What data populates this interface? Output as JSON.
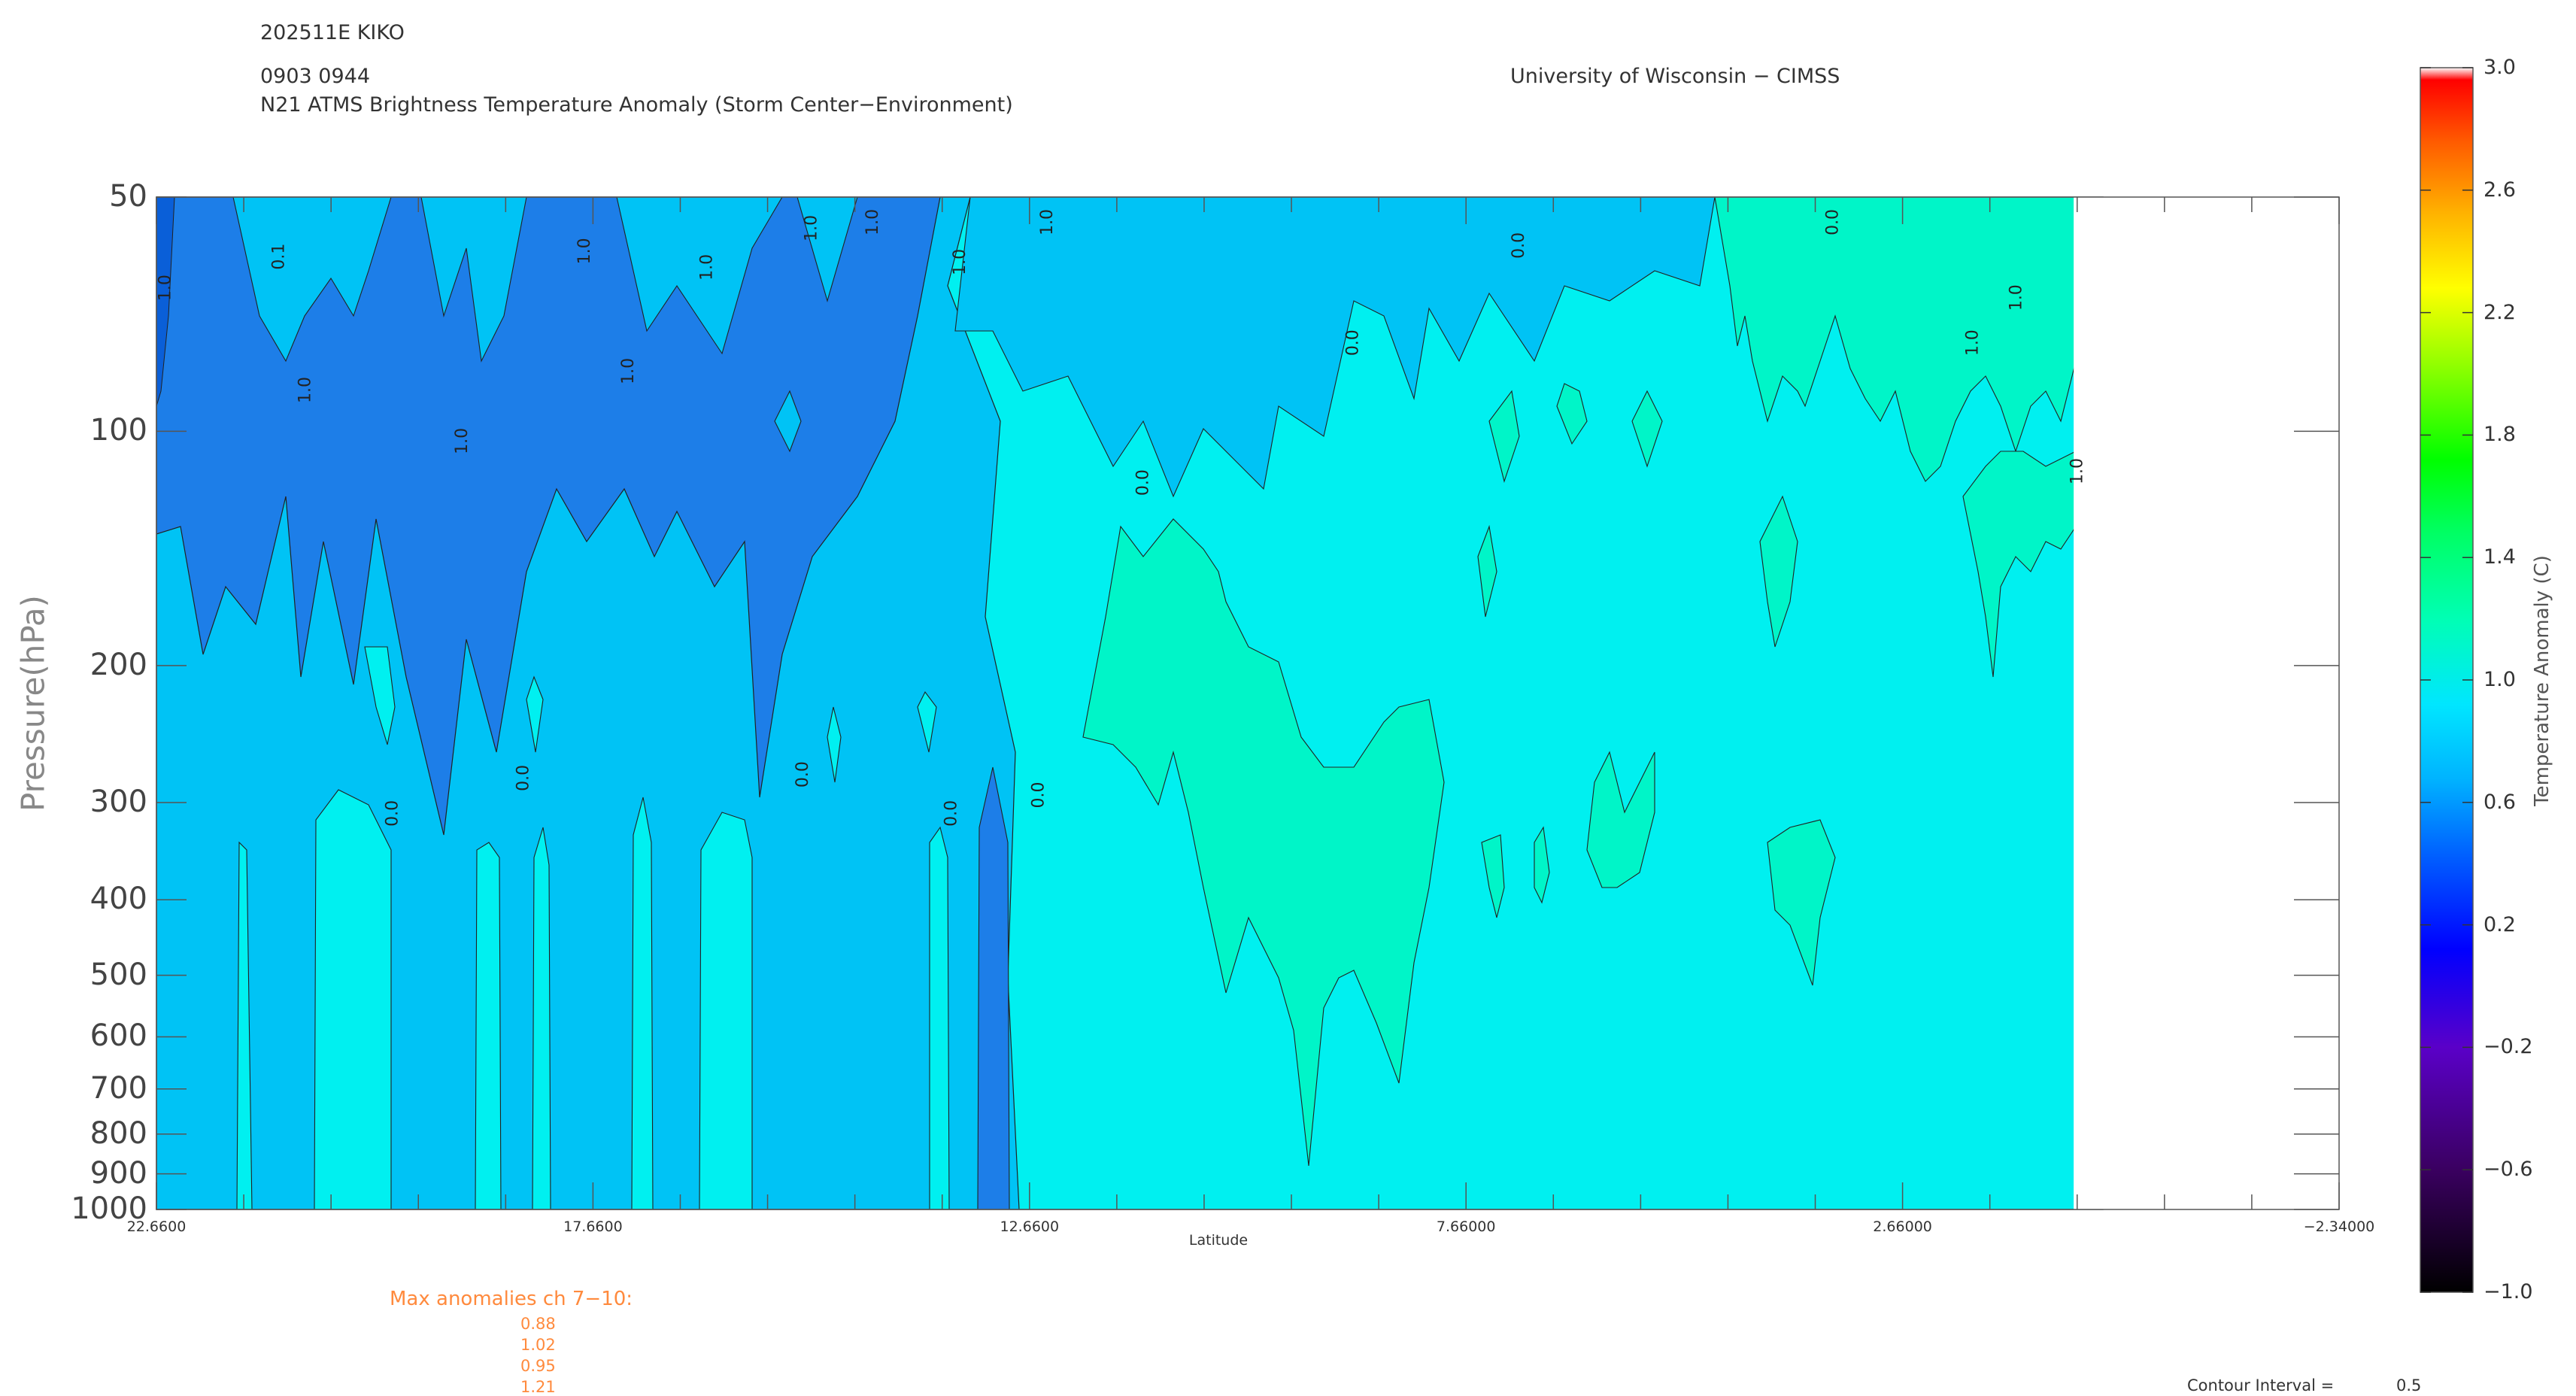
{
  "header": {
    "storm_id": "202511E KIKO",
    "times": "0903 0944",
    "title": "N21 ATMS Brightness Temperature Anomaly (Storm Center−Environment)",
    "institution": "University of Wisconsin − CIMSS"
  },
  "footer": {
    "max_anomalies_label": "Max anomalies ch 7−10:",
    "max_anomalies": [
      "0.88",
      "1.02",
      "0.95",
      "1.21"
    ],
    "contour_interval_label": "Contour Interval =",
    "contour_interval_value": "0.5"
  },
  "colors": {
    "plot_background": "#ffffff",
    "axis": "#555555",
    "title_text": "#333333",
    "max_anomaly_text": "#ff8a3d"
  },
  "chart_data": {
    "type": "heatmap",
    "subtype": "filled-contour cross-section",
    "xlabel": "Latitude",
    "ylabel": "Pressure(hPa)",
    "colorbar_label": "Temperature Anomaly (C)",
    "x_range": [
      22.66,
      -2.34
    ],
    "y_range_hPa": [
      1000,
      50
    ],
    "y_scale": "log",
    "x_ticks": [
      "22.6600",
      "17.6600",
      "12.6600",
      "7.66000",
      "2.66000",
      "−2.34000"
    ],
    "x_tick_values": [
      22.66,
      17.66,
      12.66,
      7.66,
      2.66,
      -2.34
    ],
    "y_ticks": [
      "50",
      "100",
      "200",
      "300",
      "400",
      "500",
      "600",
      "700",
      "800",
      "900",
      "1000"
    ],
    "y_tick_values": [
      50,
      100,
      200,
      300,
      400,
      500,
      600,
      700,
      800,
      900,
      1000
    ],
    "colorbar_ticks": [
      "3.0",
      "2.6",
      "2.2",
      "1.8",
      "1.4",
      "1.0",
      "0.6",
      "0.2",
      "−0.2",
      "−0.6",
      "−1.0"
    ],
    "colorbar_values": [
      3.0,
      2.6,
      2.2,
      1.8,
      1.4,
      1.0,
      0.6,
      0.2,
      -0.2,
      -0.6,
      -1.0
    ],
    "colorbar_range": [
      -1.0,
      3.0
    ],
    "data_extent_lat": [
      22.66,
      0.7
    ],
    "contour_labels": [
      {
        "text": "1.0",
        "lat": 22.5,
        "p": 68,
        "color": "#1d7ee8"
      },
      {
        "text": "0.1",
        "lat": 21.2,
        "p": 62,
        "color": "#00c3f5"
      },
      {
        "text": "1.0",
        "lat": 20.9,
        "p": 92,
        "color": "#1d7ee8"
      },
      {
        "text": "1.0",
        "lat": 19.1,
        "p": 107,
        "color": "#1d7ee8"
      },
      {
        "text": "1.0",
        "lat": 17.7,
        "p": 61,
        "color": "#1d7ee8"
      },
      {
        "text": "1.0",
        "lat": 17.2,
        "p": 87,
        "color": "#1d7ee8"
      },
      {
        "text": "1.0",
        "lat": 16.3,
        "p": 64,
        "color": "#1d7ee8"
      },
      {
        "text": "1.0",
        "lat": 15.1,
        "p": 57,
        "color": "#1d7ee8"
      },
      {
        "text": "1.0",
        "lat": 14.4,
        "p": 56,
        "color": "#1d7ee8"
      },
      {
        "text": "1.0",
        "lat": 13.4,
        "p": 63,
        "color": "#1d7ee8"
      },
      {
        "text": "1.0",
        "lat": 12.4,
        "p": 56,
        "color": "#1d7ee8"
      },
      {
        "text": "0.0",
        "lat": 11.3,
        "p": 121,
        "color": "#00c3f5"
      },
      {
        "text": "0.0",
        "lat": 8.9,
        "p": 80,
        "color": "#00c3f5"
      },
      {
        "text": "0.0",
        "lat": 7.0,
        "p": 60,
        "color": "#00c3f5"
      },
      {
        "text": "0.0",
        "lat": 3.4,
        "p": 56,
        "color": "#00c3f5"
      },
      {
        "text": "1.0",
        "lat": 1.8,
        "p": 80,
        "color": "#00f0f0"
      },
      {
        "text": "1.0",
        "lat": 1.3,
        "p": 70,
        "color": "#00f0f0"
      },
      {
        "text": "1.0",
        "lat": 0.6,
        "p": 117,
        "color": "#00f0f0"
      },
      {
        "text": "0.0",
        "lat": 18.4,
        "p": 290,
        "color": "#00c3f5"
      },
      {
        "text": "0.0",
        "lat": 19.9,
        "p": 322,
        "color": "#00c3f5"
      },
      {
        "text": "0.0",
        "lat": 15.2,
        "p": 287,
        "color": "#00c3f5"
      },
      {
        "text": "0.0",
        "lat": 13.5,
        "p": 322,
        "color": "#00c3f5"
      },
      {
        "text": "0.0",
        "lat": 12.5,
        "p": 305,
        "color": "#00c3f5"
      }
    ]
  }
}
